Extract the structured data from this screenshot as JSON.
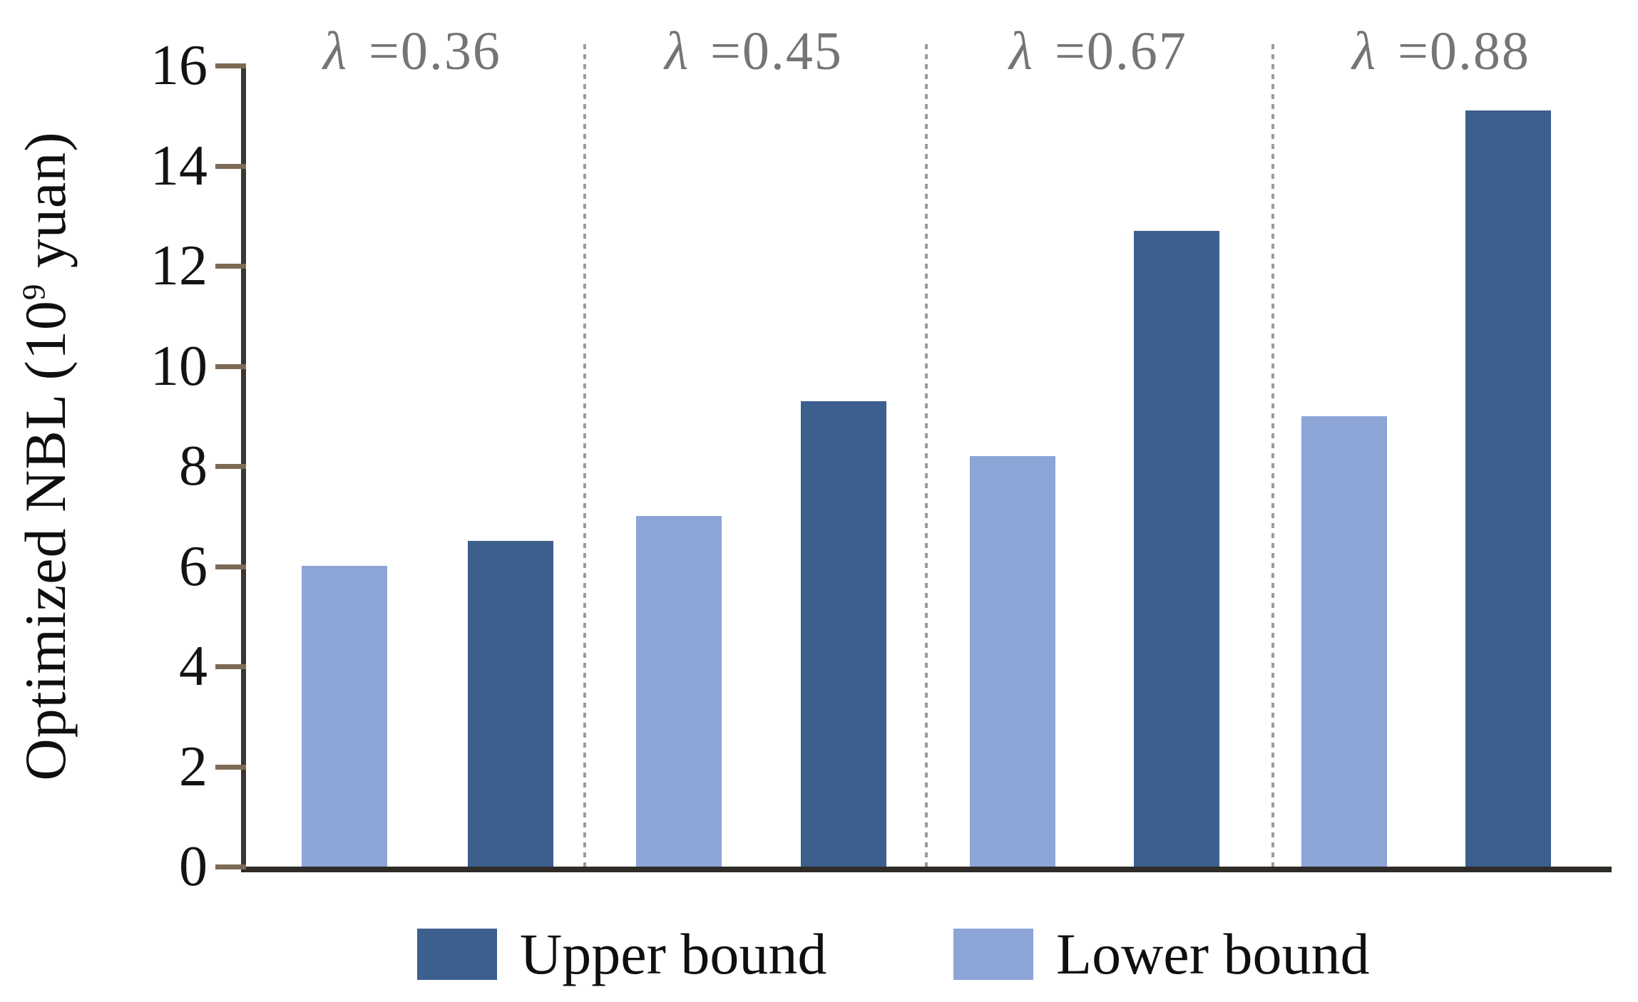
{
  "chart_data": {
    "type": "bar",
    "title": "",
    "xlabel": "",
    "ylabel": "Optimized NBL (10^9 yuan)",
    "ylabel_parts": {
      "prefix": "Optimized NBL (10",
      "sup": "9",
      "suffix": " yuan)"
    },
    "ylim": [
      0,
      16
    ],
    "y_ticks": [
      "0",
      "2",
      "4",
      "6",
      "8",
      "10",
      "12",
      "14",
      "16"
    ],
    "grid": false,
    "group_labels": [
      "λ =0.36",
      "λ =0.45",
      "λ =0.67",
      "λ =0.88"
    ],
    "categories": [
      "λ=0.36",
      "λ=0.45",
      "λ=0.67",
      "λ=0.88"
    ],
    "series": [
      {
        "name": "Lower bound",
        "color": "#8CA5D6",
        "values": [
          6.0,
          7.0,
          8.2,
          9.0
        ]
      },
      {
        "name": "Upper bound",
        "color": "#3C5F8E",
        "values": [
          6.5,
          9.3,
          12.7,
          15.1
        ]
      }
    ],
    "legend_position": "bottom",
    "legend": {
      "items": [
        {
          "label": "Upper bound",
          "color": "#3C5F8E"
        },
        {
          "label": "Lower bound",
          "color": "#8CA5D6"
        }
      ]
    }
  },
  "colors": {
    "axis": "#3a3632",
    "tick": "#7d6a55",
    "separator": "#9b9b9b",
    "group_label_text": "#757575",
    "upper_bar": "#3C5F8E",
    "lower_bar": "#8CA5D6"
  }
}
